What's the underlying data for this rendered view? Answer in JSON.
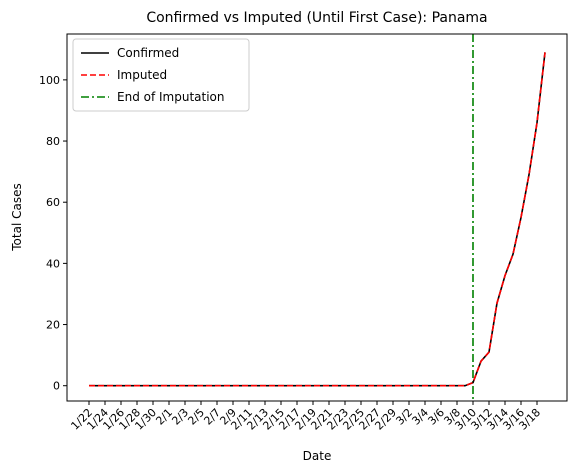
{
  "chart_data": {
    "type": "line",
    "title": "Confirmed vs Imputed (Until First Case): Panama",
    "xlabel": "Date",
    "ylabel": "Total Cases",
    "ylim": [
      -5,
      115
    ],
    "yticks": [
      0,
      20,
      40,
      60,
      80,
      100
    ],
    "x": [
      "1/22",
      "1/23",
      "1/24",
      "1/25",
      "1/26",
      "1/27",
      "1/28",
      "1/29",
      "1/30",
      "1/31",
      "2/1",
      "2/2",
      "2/3",
      "2/4",
      "2/5",
      "2/6",
      "2/7",
      "2/8",
      "2/9",
      "2/10",
      "2/11",
      "2/12",
      "2/13",
      "2/14",
      "2/15",
      "2/16",
      "2/17",
      "2/18",
      "2/19",
      "2/20",
      "2/21",
      "2/22",
      "2/23",
      "2/24",
      "2/25",
      "2/26",
      "2/27",
      "2/28",
      "2/29",
      "3/1",
      "3/2",
      "3/3",
      "3/4",
      "3/5",
      "3/6",
      "3/7",
      "3/8",
      "3/9",
      "3/10",
      "3/11",
      "3/12",
      "3/13",
      "3/14",
      "3/15",
      "3/16",
      "3/17",
      "3/18",
      "3/19"
    ],
    "xtick_labels": [
      "1/22",
      "1/24",
      "1/26",
      "1/28",
      "1/30",
      "2/1",
      "2/3",
      "2/5",
      "2/7",
      "2/9",
      "2/11",
      "2/13",
      "2/15",
      "2/17",
      "2/19",
      "2/21",
      "2/23",
      "2/25",
      "2/27",
      "2/29",
      "3/2",
      "3/4",
      "3/6",
      "3/8",
      "3/10",
      "3/12",
      "3/14",
      "3/16",
      "3/18"
    ],
    "series": [
      {
        "name": "Confirmed",
        "color": "#000000",
        "style": "solid",
        "values": [
          0,
          0,
          0,
          0,
          0,
          0,
          0,
          0,
          0,
          0,
          0,
          0,
          0,
          0,
          0,
          0,
          0,
          0,
          0,
          0,
          0,
          0,
          0,
          0,
          0,
          0,
          0,
          0,
          0,
          0,
          0,
          0,
          0,
          0,
          0,
          0,
          0,
          0,
          0,
          0,
          0,
          0,
          0,
          0,
          0,
          0,
          0,
          0,
          1,
          8,
          11,
          27,
          36,
          43,
          55,
          69,
          86,
          109
        ]
      },
      {
        "name": "Imputed",
        "color": "#ff0000",
        "style": "dashed",
        "values": [
          0,
          0,
          0,
          0,
          0,
          0,
          0,
          0,
          0,
          0,
          0,
          0,
          0,
          0,
          0,
          0,
          0,
          0,
          0,
          0,
          0,
          0,
          0,
          0,
          0,
          0,
          0,
          0,
          0,
          0,
          0,
          0,
          0,
          0,
          0,
          0,
          0,
          0,
          0,
          0,
          0,
          0,
          0,
          0,
          0,
          0,
          0,
          0,
          1,
          8,
          11,
          27,
          36,
          43,
          55,
          69,
          86,
          109
        ]
      }
    ],
    "vline": {
      "name": "End of Imputation",
      "x": "3/10",
      "color": "#008000",
      "style": "dashdot"
    },
    "legend_position": "top-left",
    "grid": false
  }
}
